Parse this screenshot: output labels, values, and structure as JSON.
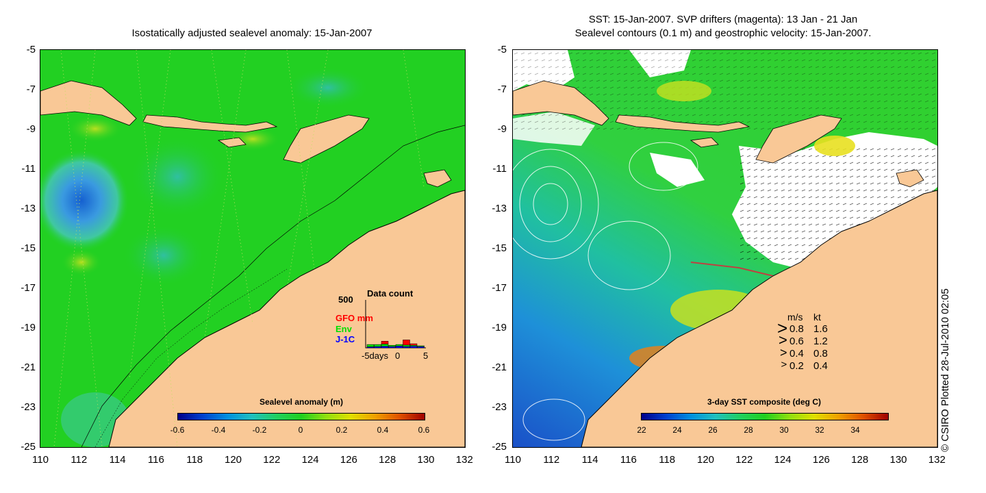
{
  "left_panel": {
    "title": "Isostatically adjusted sealevel anomaly: 15-Jan-2007",
    "y_ticks": [
      "-5",
      "-7",
      "-9",
      "-11",
      "-13",
      "-15",
      "-17",
      "-19",
      "-21",
      "-23",
      "-25"
    ],
    "x_ticks": [
      "110",
      "112",
      "114",
      "116",
      "118",
      "120",
      "122",
      "124",
      "126",
      "128",
      "130",
      "132"
    ],
    "colorbar": {
      "label": "Sealevel anomaly (m)",
      "ticks": [
        "-0.6",
        "-0.4",
        "-0.2",
        "0",
        "0.2",
        "0.4",
        "0.6"
      ],
      "range": [
        -0.6,
        0.6
      ]
    },
    "inset": {
      "title": "Data count",
      "ymax_label": "500",
      "legend": [
        {
          "label": "GFO mm",
          "color": "#ff0000"
        },
        {
          "label": "Env",
          "color": "#00e000"
        },
        {
          "label": "J-1C",
          "color": "#0000ff"
        }
      ],
      "x_labels": [
        "-5days",
        "0",
        "5"
      ],
      "bars": [
        {
          "day": -4,
          "j1c": 20,
          "env": 45,
          "gfo": 0
        },
        {
          "day": -3,
          "j1c": 25,
          "env": 40,
          "gfo": 0
        },
        {
          "day": -2,
          "j1c": 30,
          "env": 45,
          "gfo": 55
        },
        {
          "day": -1,
          "j1c": 25,
          "env": 25,
          "gfo": 0
        },
        {
          "day": 0,
          "j1c": 35,
          "env": 30,
          "gfo": 0
        },
        {
          "day": 1,
          "j1c": 25,
          "env": 30,
          "gfo": 100
        },
        {
          "day": 2,
          "j1c": 30,
          "env": 20,
          "gfo": 30
        },
        {
          "day": 3,
          "j1c": 25,
          "env": 15,
          "gfo": 0
        }
      ]
    }
  },
  "right_panel": {
    "title_line1": "SST: 15-Jan-2007. SVP drifters (magenta): 13 Jan - 21 Jan",
    "title_line2": "Sealevel contours (0.1 m) and geostrophic velocity: 15-Jan-2007.",
    "y_ticks": [
      "-5",
      "-7",
      "-9",
      "-11",
      "-13",
      "-15",
      "-17",
      "-19",
      "-21",
      "-23",
      "-25"
    ],
    "x_ticks": [
      "110",
      "112",
      "114",
      "116",
      "118",
      "120",
      "122",
      "124",
      "126",
      "128",
      "130",
      "132"
    ],
    "colorbar": {
      "label": "3-day SST composite (deg C)",
      "ticks": [
        "22",
        "24",
        "26",
        "28",
        "30",
        "32",
        "34"
      ],
      "range": [
        22,
        35
      ]
    },
    "velocity_legend": {
      "header_ms": "m/s",
      "header_kt": "kt",
      "rows": [
        {
          "ms": "0.8",
          "kt": "1.6"
        },
        {
          "ms": "0.6",
          "kt": "1.2"
        },
        {
          "ms": "0.4",
          "kt": "0.8"
        },
        {
          "ms": "0.2",
          "kt": "0.4"
        }
      ]
    }
  },
  "credit": "© CSIRO Plotted 28-Jul-2010 02:05",
  "colors": {
    "land": "#f9c896",
    "sea_base": "#22d022",
    "ocean_low": "#1f6fd8",
    "ocean_high": "#c8102e"
  }
}
